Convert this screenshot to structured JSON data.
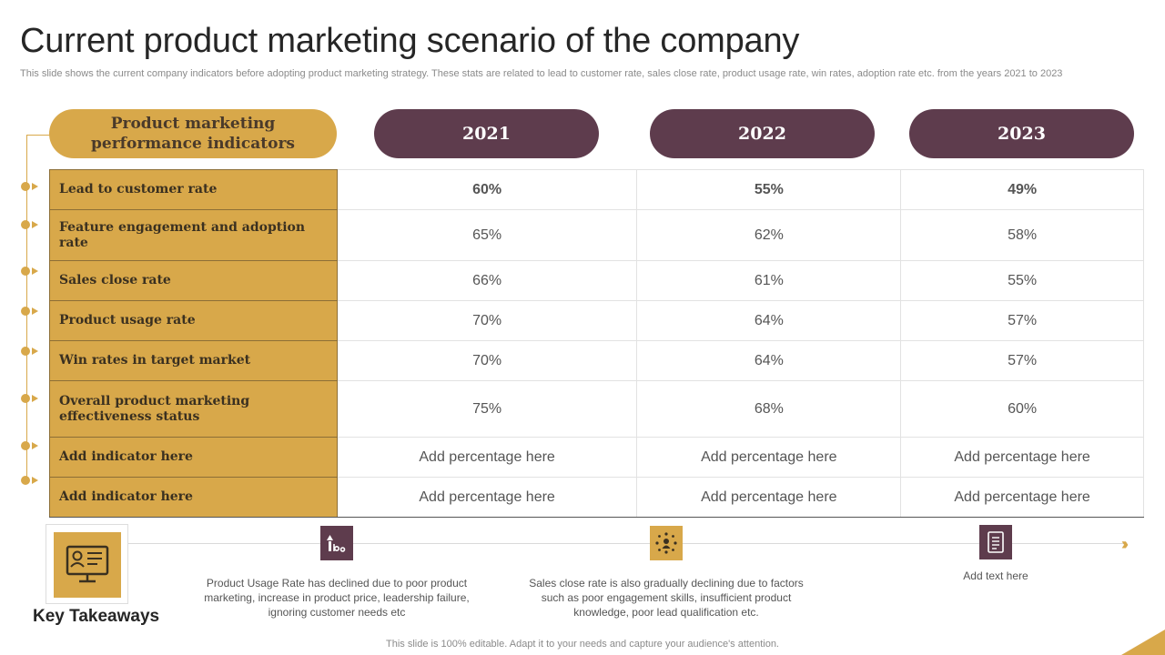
{
  "title": "Current product marketing scenario of the company",
  "subtitle": "This slide shows the current company indicators before adopting product marketing strategy. These stats are related to lead to customer rate, sales close rate, product usage rate, win rates, adoption rate etc. from the years 2021 to 2023",
  "header": {
    "main_line1": "Product marketing",
    "main_line2": "performance indicators",
    "years": [
      "2021",
      "2022",
      "2023"
    ]
  },
  "rows": [
    {
      "label": "Lead to customer rate",
      "values": [
        "60%",
        "55%",
        "49%"
      ]
    },
    {
      "label": "Feature engagement and adoption rate",
      "values": [
        "65%",
        "62%",
        "58%"
      ]
    },
    {
      "label": "Sales close rate",
      "values": [
        "66%",
        "61%",
        "55%"
      ]
    },
    {
      "label": "Product usage rate",
      "values": [
        "70%",
        "64%",
        "57%"
      ]
    },
    {
      "label": "Win rates in target market",
      "values": [
        "70%",
        "64%",
        "57%"
      ]
    },
    {
      "label": "Overall product marketing effectiveness status",
      "values": [
        "75%",
        "68%",
        "60%"
      ]
    },
    {
      "label": "Add indicator here",
      "values": [
        "Add percentage here",
        "Add percentage here",
        "Add percentage here"
      ]
    },
    {
      "label": "Add indicator here",
      "values": [
        "Add percentage here",
        "Add percentage here",
        "Add percentage here"
      ]
    }
  ],
  "takeaways": {
    "label": "Key Takeaways",
    "note1": "Product Usage Rate has declined due to poor product marketing, increase in product price, leadership failure, ignoring customer needs etc",
    "note2": "Sales close rate is also gradually declining due to factors such as poor engagement skills, insufficient product knowledge, poor lead qualification etc.",
    "note3": "Add text here"
  },
  "footer": "This slide is 100% editable. Adapt it to your needs and capture your audience's attention.",
  "colors": {
    "gold": "#d8a84a",
    "plum": "#5e3c4d"
  }
}
